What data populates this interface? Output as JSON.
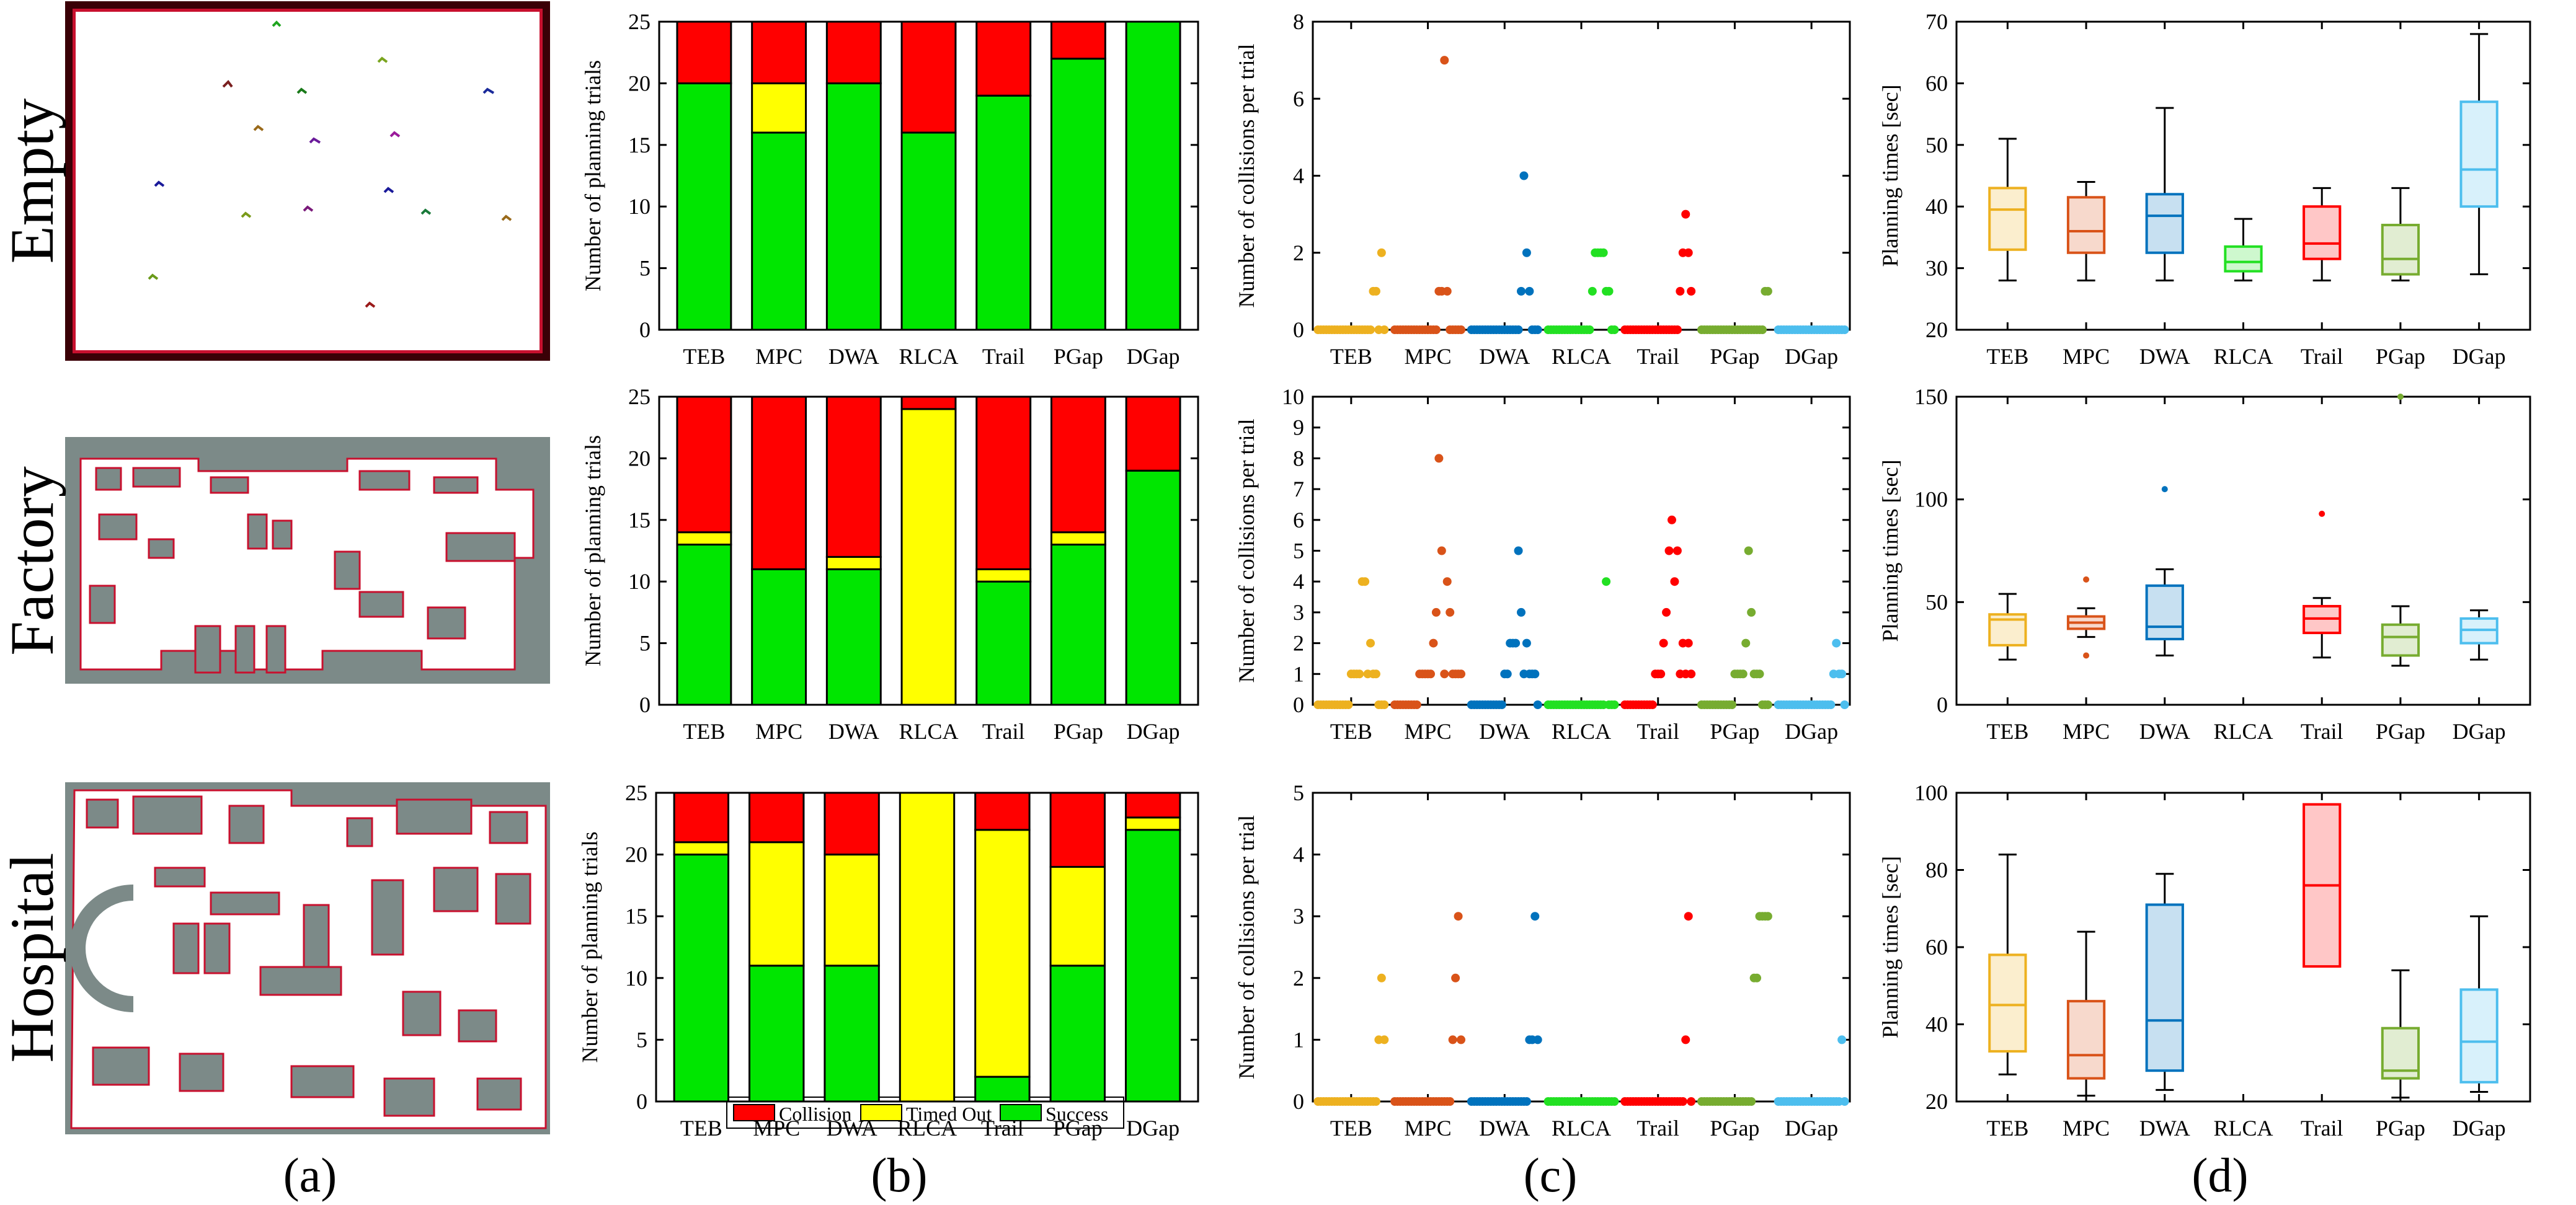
{
  "figure": {
    "panel_letters": [
      "(a)",
      "(b)",
      "(c)",
      "(d)"
    ],
    "row_labels": [
      "Empty",
      "Factory",
      "Hospital"
    ],
    "legend": {
      "items": [
        {
          "label": "Collision",
          "color": "#ff0000"
        },
        {
          "label": "Timed Out",
          "color": "#ffff00"
        },
        {
          "label": "Success",
          "color": "#00e600"
        }
      ]
    },
    "method_colors": {
      "TEB": "#edb120",
      "MPC": "#d95319",
      "DWA": "#0072bd",
      "RLCA": "#22e022",
      "Trail": "#ff0000",
      "PGap": "#77ac30",
      "DGap": "#4dbeee"
    },
    "outcome_colors": {
      "collision": "#ff0000",
      "timed_out": "#ffff00",
      "success": "#00e600"
    }
  },
  "chart_data": [
    {
      "id": "b-empty",
      "type": "bar",
      "stacked": true,
      "categories": [
        "TEB",
        "MPC",
        "DWA",
        "RLCA",
        "Trail",
        "PGap",
        "DGap"
      ],
      "series": [
        {
          "name": "Success",
          "values": [
            20,
            16,
            20,
            16,
            19,
            22,
            25
          ]
        },
        {
          "name": "Timed Out",
          "values": [
            0,
            4,
            0,
            0,
            0,
            0,
            0
          ]
        },
        {
          "name": "Collision",
          "values": [
            5,
            5,
            5,
            9,
            6,
            3,
            0
          ]
        }
      ],
      "ylabel": "Number of planning trials",
      "ylim": [
        0,
        25
      ],
      "yticks": [
        0,
        5,
        10,
        15,
        20,
        25
      ]
    },
    {
      "id": "b-factory",
      "type": "bar",
      "stacked": true,
      "categories": [
        "TEB",
        "MPC",
        "DWA",
        "RLCA",
        "Trail",
        "PGap",
        "DGap"
      ],
      "series": [
        {
          "name": "Success",
          "values": [
            13,
            11,
            11,
            0,
            10,
            13,
            19
          ]
        },
        {
          "name": "Timed Out",
          "values": [
            1,
            0,
            1,
            24,
            1,
            1,
            0
          ]
        },
        {
          "name": "Collision",
          "values": [
            11,
            14,
            13,
            1,
            14,
            11,
            6
          ]
        }
      ],
      "ylabel": "Number of planning trials",
      "ylim": [
        0,
        25
      ],
      "yticks": [
        0,
        5,
        10,
        15,
        20,
        25
      ]
    },
    {
      "id": "b-hospital",
      "type": "bar",
      "stacked": true,
      "categories": [
        "TEB",
        "MPC",
        "DWA",
        "RLCA",
        "Trail",
        "PGap",
        "DGap"
      ],
      "series": [
        {
          "name": "Success",
          "values": [
            20,
            11,
            11,
            0,
            2,
            11,
            22
          ]
        },
        {
          "name": "Timed Out",
          "values": [
            1,
            10,
            9,
            25,
            20,
            8,
            1
          ]
        },
        {
          "name": "Collision",
          "values": [
            4,
            4,
            5,
            0,
            3,
            6,
            2
          ]
        }
      ],
      "ylabel": "Number of planning trials",
      "ylim": [
        0,
        25
      ],
      "yticks": [
        0,
        5,
        10,
        15,
        20,
        25
      ]
    },
    {
      "id": "c-empty",
      "type": "scatter",
      "categories": [
        "TEB",
        "MPC",
        "DWA",
        "RLCA",
        "Trail",
        "PGap",
        "DGap"
      ],
      "series": [
        {
          "name": "TEB",
          "values": [
            0,
            0,
            0,
            0,
            0,
            0,
            0,
            0,
            0,
            0,
            0,
            0,
            0,
            0,
            0,
            0,
            0,
            0,
            0,
            0,
            1,
            1,
            0,
            2,
            0
          ]
        },
        {
          "name": "MPC",
          "values": [
            0,
            0,
            0,
            0,
            0,
            0,
            0,
            0,
            0,
            0,
            0,
            0,
            0,
            0,
            0,
            0,
            1,
            1,
            7,
            1,
            0,
            0,
            0,
            0,
            0
          ]
        },
        {
          "name": "DWA",
          "values": [
            0,
            0,
            0,
            0,
            0,
            0,
            0,
            0,
            0,
            0,
            0,
            0,
            0,
            0,
            0,
            0,
            0,
            0,
            1,
            4,
            2,
            1,
            0,
            0,
            0
          ]
        },
        {
          "name": "RLCA",
          "values": [
            0,
            0,
            0,
            0,
            0,
            0,
            0,
            0,
            0,
            0,
            0,
            0,
            0,
            0,
            0,
            0,
            1,
            2,
            2,
            2,
            2,
            1,
            1,
            0,
            0
          ]
        },
        {
          "name": "Trail",
          "values": [
            0,
            0,
            0,
            0,
            0,
            0,
            0,
            0,
            0,
            0,
            0,
            0,
            0,
            0,
            0,
            0,
            0,
            0,
            0,
            0,
            1,
            2,
            3,
            2,
            1
          ]
        },
        {
          "name": "PGap",
          "values": [
            0,
            0,
            0,
            0,
            0,
            0,
            0,
            0,
            0,
            0,
            0,
            0,
            0,
            0,
            0,
            0,
            0,
            0,
            0,
            0,
            0,
            0,
            0,
            1,
            1
          ]
        },
        {
          "name": "DGap",
          "values": [
            0,
            0,
            0,
            0,
            0,
            0,
            0,
            0,
            0,
            0,
            0,
            0,
            0,
            0,
            0,
            0,
            0,
            0,
            0,
            0,
            0,
            0,
            0,
            0,
            0
          ]
        }
      ],
      "ylabel": "Number of collisions per trial",
      "ylim": [
        0,
        8
      ],
      "yticks": [
        0,
        2,
        4,
        6,
        8
      ]
    },
    {
      "id": "c-factory",
      "type": "scatter",
      "categories": [
        "TEB",
        "MPC",
        "DWA",
        "RLCA",
        "Trail",
        "PGap",
        "DGap"
      ],
      "series": [
        {
          "name": "TEB",
          "values": [
            0,
            0,
            0,
            0,
            0,
            0,
            0,
            0,
            0,
            0,
            0,
            0,
            1,
            1,
            1,
            1,
            4,
            4,
            1,
            2,
            1,
            1,
            0,
            0,
            0
          ]
        },
        {
          "name": "MPC",
          "values": [
            0,
            0,
            0,
            0,
            0,
            0,
            0,
            0,
            0,
            1,
            1,
            1,
            1,
            1,
            2,
            3,
            8,
            5,
            1,
            4,
            3,
            1,
            1,
            1,
            1
          ]
        },
        {
          "name": "DWA",
          "values": [
            0,
            0,
            0,
            0,
            0,
            0,
            0,
            0,
            0,
            0,
            0,
            0,
            1,
            1,
            2,
            2,
            2,
            5,
            3,
            1,
            2,
            1,
            1,
            1,
            0
          ]
        },
        {
          "name": "RLCA",
          "values": [
            0,
            0,
            0,
            0,
            0,
            0,
            0,
            0,
            0,
            0,
            0,
            0,
            0,
            0,
            0,
            0,
            0,
            0,
            0,
            0,
            0,
            4,
            0,
            0,
            0
          ]
        },
        {
          "name": "Trail",
          "values": [
            0,
            0,
            0,
            0,
            0,
            0,
            0,
            0,
            0,
            0,
            0,
            1,
            1,
            1,
            2,
            3,
            5,
            6,
            4,
            5,
            1,
            2,
            1,
            2,
            1
          ]
        },
        {
          "name": "PGap",
          "values": [
            0,
            0,
            0,
            0,
            0,
            0,
            0,
            0,
            0,
            0,
            0,
            0,
            1,
            1,
            1,
            1,
            2,
            5,
            3,
            1,
            1,
            1,
            0,
            0,
            0
          ]
        },
        {
          "name": "DGap",
          "values": [
            0,
            0,
            0,
            0,
            0,
            0,
            0,
            0,
            0,
            0,
            0,
            0,
            0,
            0,
            0,
            0,
            0,
            0,
            0,
            0,
            1,
            2,
            1,
            1,
            0
          ]
        }
      ],
      "ylabel": "Number of collisions per trial",
      "ylim": [
        0,
        10
      ],
      "yticks": [
        0,
        1,
        2,
        3,
        4,
        5,
        6,
        7,
        8,
        9,
        10
      ]
    },
    {
      "id": "c-hospital",
      "type": "scatter",
      "categories": [
        "TEB",
        "MPC",
        "DWA",
        "RLCA",
        "Trail",
        "PGap",
        "DGap"
      ],
      "series": [
        {
          "name": "TEB",
          "values": [
            0,
            0,
            0,
            0,
            0,
            0,
            0,
            0,
            0,
            0,
            0,
            0,
            0,
            0,
            0,
            0,
            0,
            0,
            0,
            0,
            0,
            0,
            1,
            2,
            1
          ]
        },
        {
          "name": "MPC",
          "values": [
            0,
            0,
            0,
            0,
            0,
            0,
            0,
            0,
            0,
            0,
            0,
            0,
            0,
            0,
            0,
            0,
            0,
            0,
            0,
            0,
            0,
            1,
            2,
            3,
            1
          ]
        },
        {
          "name": "DWA",
          "values": [
            0,
            0,
            0,
            0,
            0,
            0,
            0,
            0,
            0,
            0,
            0,
            0,
            0,
            0,
            0,
            0,
            0,
            0,
            0,
            0,
            0,
            1,
            1,
            3,
            1
          ]
        },
        {
          "name": "RLCA",
          "values": [
            0,
            0,
            0,
            0,
            0,
            0,
            0,
            0,
            0,
            0,
            0,
            0,
            0,
            0,
            0,
            0,
            0,
            0,
            0,
            0,
            0,
            0,
            0,
            0,
            0
          ]
        },
        {
          "name": "Trail",
          "values": [
            0,
            0,
            0,
            0,
            0,
            0,
            0,
            0,
            0,
            0,
            0,
            0,
            0,
            0,
            0,
            0,
            0,
            0,
            0,
            0,
            0,
            0,
            1,
            3,
            0
          ]
        },
        {
          "name": "PGap",
          "values": [
            0,
            0,
            0,
            0,
            0,
            0,
            0,
            0,
            0,
            0,
            0,
            0,
            0,
            0,
            0,
            0,
            0,
            0,
            0,
            2,
            2,
            3,
            3,
            3,
            3
          ]
        },
        {
          "name": "DGap",
          "values": [
            0,
            0,
            0,
            0,
            0,
            0,
            0,
            0,
            0,
            0,
            0,
            0,
            0,
            0,
            0,
            0,
            0,
            0,
            0,
            0,
            0,
            0,
            0,
            1,
            0
          ]
        }
      ],
      "ylabel": "Number of collisions per trial",
      "ylim": [
        0,
        5
      ],
      "yticks": [
        0,
        1,
        2,
        3,
        4,
        5
      ]
    },
    {
      "id": "d-empty",
      "type": "box",
      "categories": [
        "TEB",
        "MPC",
        "DWA",
        "RLCA",
        "Trail",
        "PGap",
        "DGap"
      ],
      "boxes": [
        {
          "name": "TEB",
          "min": 28,
          "q1": 33,
          "median": 39.5,
          "q3": 43,
          "max": 51,
          "outliers": []
        },
        {
          "name": "MPC",
          "min": 28,
          "q1": 32.5,
          "median": 36,
          "q3": 41.5,
          "max": 44,
          "outliers": []
        },
        {
          "name": "DWA",
          "min": 28,
          "q1": 32.5,
          "median": 38.5,
          "q3": 42,
          "max": 56,
          "outliers": []
        },
        {
          "name": "RLCA",
          "min": 28,
          "q1": 29.5,
          "median": 31,
          "q3": 33.5,
          "max": 38,
          "outliers": []
        },
        {
          "name": "Trail",
          "min": 28,
          "q1": 31.5,
          "median": 34,
          "q3": 40,
          "max": 43,
          "outliers": []
        },
        {
          "name": "PGap",
          "min": 28,
          "q1": 29,
          "median": 31.5,
          "q3": 37,
          "max": 43,
          "outliers": []
        },
        {
          "name": "DGap",
          "min": 29,
          "q1": 40,
          "median": 46,
          "q3": 57,
          "max": 68,
          "outliers": []
        }
      ],
      "ylabel": "Planning times [sec]",
      "ylim": [
        20,
        70
      ],
      "yticks": [
        20,
        30,
        40,
        50,
        60,
        70
      ]
    },
    {
      "id": "d-factory",
      "type": "box",
      "categories": [
        "TEB",
        "MPC",
        "DWA",
        "RLCA",
        "Trail",
        "PGap",
        "DGap"
      ],
      "boxes": [
        {
          "name": "TEB",
          "min": 22,
          "q1": 29,
          "median": 41.5,
          "q3": 44,
          "max": 54,
          "outliers": []
        },
        {
          "name": "MPC",
          "min": 33,
          "q1": 37,
          "median": 40,
          "q3": 43,
          "max": 47,
          "outliers": [
            61,
            24
          ]
        },
        {
          "name": "DWA",
          "min": 24,
          "q1": 32,
          "median": 38,
          "q3": 58,
          "max": 66,
          "outliers": [
            105
          ]
        },
        {
          "name": "RLCA",
          "min": null,
          "q1": null,
          "median": null,
          "q3": null,
          "max": null,
          "outliers": []
        },
        {
          "name": "Trail",
          "min": 23,
          "q1": 35,
          "median": 42,
          "q3": 48,
          "max": 52,
          "outliers": [
            93
          ]
        },
        {
          "name": "PGap",
          "min": 19,
          "q1": 24,
          "median": 33,
          "q3": 39,
          "max": 48,
          "outliers": [
            150
          ]
        },
        {
          "name": "DGap",
          "min": 22,
          "q1": 30,
          "median": 36.5,
          "q3": 42,
          "max": 46,
          "outliers": []
        }
      ],
      "ylabel": "Planning times [sec]",
      "ylim": [
        0,
        150
      ],
      "yticks": [
        0,
        50,
        100,
        150
      ]
    },
    {
      "id": "d-hospital",
      "type": "box",
      "categories": [
        "TEB",
        "MPC",
        "DWA",
        "RLCA",
        "Trail",
        "PGap",
        "DGap"
      ],
      "boxes": [
        {
          "name": "TEB",
          "min": 27,
          "q1": 33,
          "median": 45,
          "q3": 58,
          "max": 84,
          "outliers": []
        },
        {
          "name": "MPC",
          "min": 21.5,
          "q1": 26,
          "median": 32,
          "q3": 46,
          "max": 64,
          "outliers": []
        },
        {
          "name": "DWA",
          "min": 23,
          "q1": 28,
          "median": 41,
          "q3": 71,
          "max": 79,
          "outliers": []
        },
        {
          "name": "RLCA",
          "min": null,
          "q1": null,
          "median": null,
          "q3": null,
          "max": null,
          "outliers": []
        },
        {
          "name": "Trail",
          "min": 55,
          "q1": 55,
          "median": 76,
          "q3": 97,
          "max": 97,
          "outliers": []
        },
        {
          "name": "PGap",
          "min": 21,
          "q1": 26,
          "median": 28,
          "q3": 39,
          "max": 54,
          "outliers": []
        },
        {
          "name": "DGap",
          "min": 22.5,
          "q1": 25,
          "median": 35.5,
          "q3": 49,
          "max": 68,
          "outliers": []
        }
      ],
      "ylabel": "Planning times [sec]",
      "ylim": [
        20,
        100
      ],
      "yticks": [
        20,
        40,
        60,
        80,
        100
      ]
    }
  ]
}
